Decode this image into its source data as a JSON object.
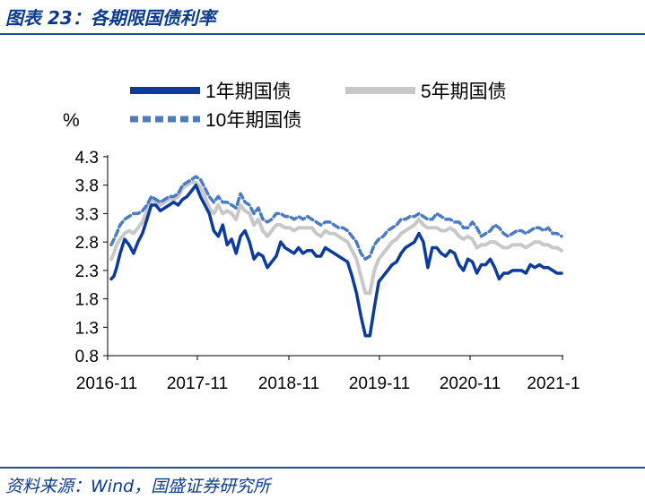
{
  "figure": {
    "title": "图表 23：各期限国债利率",
    "source": "资料来源：Wind，国盛证券研究所"
  },
  "chart_data": {
    "type": "line",
    "y_unit": "%",
    "ylim": [
      0.8,
      4.3
    ],
    "y_ticks": [
      "4.3",
      "3.8",
      "3.3",
      "2.8",
      "2.3",
      "1.8",
      "1.3",
      "0.8"
    ],
    "x_tick_labels": [
      "2016-11",
      "2017-11",
      "2018-11",
      "2019-11",
      "2020-11",
      "2021-1"
    ],
    "grid": false,
    "legend_position": "top",
    "series": [
      {
        "name": "1年期国债",
        "color": "#0b3b9c",
        "style": "solid",
        "x": [
          0,
          0.3,
          0.6,
          1,
          1.5,
          2,
          2.5,
          3,
          3.5,
          4,
          4.5,
          5,
          5.5,
          6,
          6.5,
          7,
          7.5,
          8,
          8.5,
          9,
          9.5,
          10,
          10.5,
          11,
          11.5,
          12,
          12.5,
          13,
          13.5,
          14,
          14.5,
          15,
          15.5,
          16,
          16.5,
          17,
          17.5,
          18,
          18.5,
          19,
          19.5,
          20,
          20.5,
          21,
          21.5,
          22,
          22.5,
          23,
          23.5,
          24,
          24.5,
          25,
          25.5,
          26,
          26.5,
          27,
          27.5,
          28,
          28.5,
          29,
          29.5,
          30,
          30.5,
          31,
          31.5,
          32,
          32.5,
          33,
          33.5,
          34,
          34.5,
          35,
          35.5,
          36,
          36.5,
          37,
          37.5,
          38,
          38.5,
          39,
          39.5,
          40,
          40.5,
          41,
          41.5,
          42,
          42.5,
          43,
          43.5,
          44,
          44.5,
          45,
          45.5,
          46,
          46.5,
          47,
          47.5,
          48,
          48.5,
          49,
          49.5,
          50,
          50.5
        ],
        "values": [
          2.15,
          2.2,
          2.35,
          2.6,
          2.85,
          2.75,
          2.6,
          2.8,
          2.95,
          3.2,
          3.45,
          3.45,
          3.35,
          3.4,
          3.45,
          3.5,
          3.45,
          3.55,
          3.6,
          3.7,
          3.8,
          3.6,
          3.45,
          3.3,
          3.0,
          2.9,
          3.1,
          2.75,
          2.85,
          2.6,
          2.9,
          3.0,
          2.8,
          2.5,
          2.6,
          2.55,
          2.35,
          2.45,
          2.55,
          2.8,
          2.7,
          2.65,
          2.6,
          2.7,
          2.6,
          2.65,
          2.65,
          2.55,
          2.55,
          2.7,
          2.65,
          2.6,
          2.55,
          2.5,
          2.45,
          2.2,
          1.9,
          1.5,
          1.15,
          1.15,
          1.65,
          2.1,
          2.2,
          2.3,
          2.4,
          2.45,
          2.6,
          2.7,
          2.75,
          2.8,
          2.95,
          2.8,
          2.35,
          2.7,
          2.7,
          2.6,
          2.55,
          2.65,
          2.6,
          2.4,
          2.3,
          2.5,
          2.45,
          2.25,
          2.4,
          2.4,
          2.5,
          2.35,
          2.15,
          2.25,
          2.25,
          2.3,
          2.3,
          2.3,
          2.25,
          2.4,
          2.35,
          2.4,
          2.35,
          2.35,
          2.3,
          2.25,
          2.25
        ]
      },
      {
        "name": "5年期国债",
        "color": "#c8c8c8",
        "style": "solid",
        "x": [
          0,
          0.3,
          0.6,
          1,
          1.5,
          2,
          2.5,
          3,
          3.5,
          4,
          4.5,
          5,
          5.5,
          6,
          6.5,
          7,
          7.5,
          8,
          8.5,
          9,
          9.5,
          10,
          10.5,
          11,
          11.5,
          12,
          12.5,
          13,
          13.5,
          14,
          14.5,
          15,
          15.5,
          16,
          16.5,
          17,
          17.5,
          18,
          18.5,
          19,
          19.5,
          20,
          20.5,
          21,
          21.5,
          22,
          22.5,
          23,
          23.5,
          24,
          24.5,
          25,
          25.5,
          26,
          26.5,
          27,
          27.5,
          28,
          28.5,
          29,
          29.5,
          30,
          30.5,
          31,
          31.5,
          32,
          32.5,
          33,
          33.5,
          34,
          34.5,
          35,
          35.5,
          36,
          36.5,
          37,
          37.5,
          38,
          38.5,
          39,
          39.5,
          40,
          40.5,
          41,
          41.5,
          42,
          42.5,
          43,
          43.5,
          44,
          44.5,
          45,
          45.5,
          46,
          46.5,
          47,
          47.5,
          48,
          48.5,
          49,
          49.5,
          50,
          50.5
        ],
        "values": [
          2.5,
          2.6,
          2.75,
          2.85,
          2.95,
          3.0,
          2.95,
          3.05,
          3.15,
          3.35,
          3.55,
          3.5,
          3.45,
          3.5,
          3.55,
          3.55,
          3.6,
          3.75,
          3.8,
          3.85,
          3.85,
          3.75,
          3.6,
          3.4,
          3.3,
          3.45,
          3.3,
          3.35,
          3.3,
          3.2,
          3.45,
          3.35,
          3.3,
          3.1,
          3.2,
          3.0,
          2.9,
          3.0,
          3.1,
          3.1,
          3.05,
          3.05,
          3.0,
          3.05,
          3.05,
          3.05,
          3.05,
          2.95,
          2.9,
          3.0,
          2.95,
          2.95,
          2.9,
          2.85,
          2.8,
          2.65,
          2.5,
          2.2,
          1.9,
          1.9,
          2.3,
          2.5,
          2.6,
          2.7,
          2.8,
          2.85,
          2.95,
          3.0,
          3.05,
          3.1,
          3.2,
          3.1,
          3.05,
          3.05,
          3.05,
          3.0,
          3.0,
          3.05,
          3.0,
          2.9,
          2.85,
          2.9,
          2.85,
          2.7,
          2.75,
          2.75,
          2.8,
          2.8,
          2.75,
          2.7,
          2.7,
          2.75,
          2.75,
          2.75,
          2.7,
          2.75,
          2.8,
          2.8,
          2.75,
          2.75,
          2.7,
          2.7,
          2.65
        ]
      },
      {
        "name": "10年期国债",
        "color": "#4a7cc4",
        "style": "dashed",
        "x": [
          0,
          0.3,
          0.6,
          1,
          1.5,
          2,
          2.5,
          3,
          3.5,
          4,
          4.5,
          5,
          5.5,
          6,
          6.5,
          7,
          7.5,
          8,
          8.5,
          9,
          9.5,
          10,
          10.5,
          11,
          11.5,
          12,
          12.5,
          13,
          13.5,
          14,
          14.5,
          15,
          15.5,
          16,
          16.5,
          17,
          17.5,
          18,
          18.5,
          19,
          19.5,
          20,
          20.5,
          21,
          21.5,
          22,
          22.5,
          23,
          23.5,
          24,
          24.5,
          25,
          25.5,
          26,
          26.5,
          27,
          27.5,
          28,
          28.5,
          29,
          29.5,
          30,
          30.5,
          31,
          31.5,
          32,
          32.5,
          33,
          33.5,
          34,
          34.5,
          35,
          35.5,
          36,
          36.5,
          37,
          37.5,
          38,
          38.5,
          39,
          39.5,
          40,
          40.5,
          41,
          41.5,
          42,
          42.5,
          43,
          43.5,
          44,
          44.5,
          45,
          45.5,
          46,
          46.5,
          47,
          47.5,
          48,
          48.5,
          49,
          49.5,
          50,
          50.5
        ],
        "values": [
          2.75,
          2.85,
          2.95,
          3.1,
          3.2,
          3.25,
          3.3,
          3.3,
          3.35,
          3.45,
          3.6,
          3.55,
          3.5,
          3.55,
          3.6,
          3.6,
          3.65,
          3.8,
          3.85,
          3.9,
          3.95,
          3.9,
          3.75,
          3.6,
          3.5,
          3.6,
          3.5,
          3.5,
          3.45,
          3.4,
          3.65,
          3.5,
          3.45,
          3.3,
          3.4,
          3.2,
          3.15,
          3.2,
          3.3,
          3.3,
          3.25,
          3.25,
          3.2,
          3.25,
          3.2,
          3.25,
          3.2,
          3.15,
          3.1,
          3.15,
          3.15,
          3.1,
          3.05,
          3.05,
          3.0,
          2.9,
          2.8,
          2.6,
          2.5,
          2.55,
          2.75,
          2.85,
          2.9,
          3.0,
          3.05,
          3.1,
          3.2,
          3.2,
          3.25,
          3.25,
          3.3,
          3.25,
          3.2,
          3.2,
          3.3,
          3.25,
          3.2,
          3.2,
          3.15,
          3.15,
          3.05,
          3.05,
          3.15,
          3.05,
          2.9,
          2.95,
          3.0,
          3.1,
          3.05,
          2.95,
          2.9,
          2.95,
          3.0,
          3.0,
          2.95,
          3.0,
          3.05,
          3.05,
          3.0,
          3.05,
          2.95,
          2.95,
          2.9
        ]
      }
    ]
  }
}
